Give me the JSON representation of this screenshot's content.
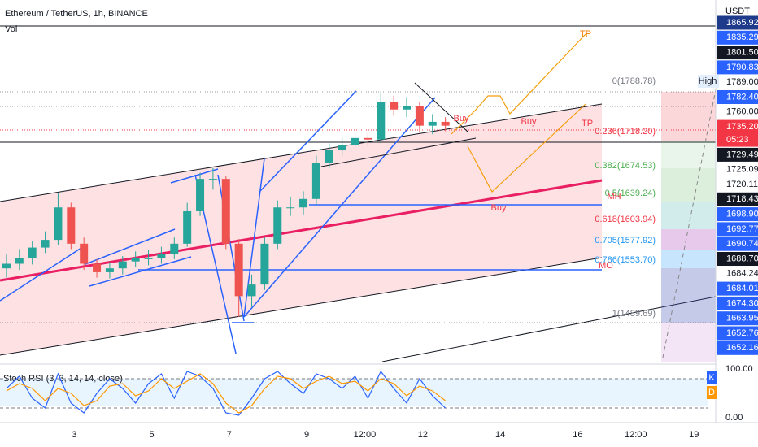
{
  "chart_data": {
    "type": "candlestick",
    "title": "Ethereum / TetherUS, 1h, BINANCE",
    "subtitle": "Vol",
    "y_axis_label": "USDT",
    "up_color": "#26a69a",
    "down_color": "#ef5350",
    "x": [
      4,
      12,
      20,
      28,
      36,
      44,
      52,
      60,
      68,
      76,
      84,
      92,
      100,
      108,
      116,
      124,
      132,
      140,
      148,
      156,
      164,
      172,
      180,
      188,
      196,
      204,
      212,
      220,
      228,
      236,
      244,
      252,
      260,
      268,
      276
    ],
    "open": [
      1560,
      1566,
      1573,
      1587,
      1597,
      1639,
      1592,
      1566,
      1555,
      1560,
      1569,
      1573,
      1573,
      1579,
      1592,
      1634,
      1676,
      1676,
      1592,
      1524,
      1539,
      1592,
      1639,
      1639,
      1650,
      1697,
      1713,
      1720,
      1729,
      1727,
      1776,
      1766,
      1771,
      1745,
      1750
    ],
    "high": [
      1578,
      1585,
      1596,
      1608,
      1657,
      1645,
      1600,
      1572,
      1568,
      1576,
      1582,
      1584,
      1588,
      1600,
      1645,
      1684,
      1690,
      1680,
      1598,
      1552,
      1600,
      1648,
      1652,
      1660,
      1706,
      1722,
      1730,
      1738,
      1736,
      1790,
      1784,
      1782,
      1776,
      1760,
      1756
    ],
    "low": [
      1548,
      1558,
      1565,
      1580,
      1590,
      1585,
      1558,
      1548,
      1547,
      1552,
      1562,
      1564,
      1566,
      1572,
      1588,
      1628,
      1662,
      1585,
      1497,
      1510,
      1532,
      1585,
      1628,
      1630,
      1642,
      1690,
      1706,
      1712,
      1718,
      1722,
      1758,
      1756,
      1736,
      1734,
      1738
    ],
    "close": [
      1566,
      1573,
      1587,
      1597,
      1639,
      1592,
      1566,
      1555,
      1560,
      1569,
      1573,
      1573,
      1579,
      1592,
      1634,
      1676,
      1676,
      1592,
      1524,
      1539,
      1592,
      1639,
      1639,
      1650,
      1697,
      1713,
      1720,
      1729,
      1727,
      1776,
      1766,
      1771,
      1745,
      1750,
      1745
    ],
    "xlim": [
      0,
      443.5
    ],
    "ylim": [
      1439,
      1908
    ],
    "xticks": [
      {
        "value": 46,
        "label": "3"
      },
      {
        "value": 94,
        "label": "5"
      },
      {
        "value": 142,
        "label": "7"
      },
      {
        "value": 190,
        "label": "9"
      },
      {
        "value": 226,
        "label": "12:00"
      },
      {
        "value": 262,
        "label": "12"
      },
      {
        "value": 310,
        "label": "14"
      },
      {
        "value": 358,
        "label": "16"
      },
      {
        "value": 394,
        "label": "12:00"
      },
      {
        "value": 430,
        "label": "19"
      }
    ],
    "price_tags": [
      {
        "label": "1865.92",
        "color": "#1e3a8a"
      },
      {
        "label": "1835.29",
        "color": "#2962ff"
      },
      {
        "label": "1801.50",
        "color": "#131722"
      },
      {
        "label": "1790.83",
        "color": "#2962ff"
      },
      {
        "label": "1789.00",
        "color": "#ffffff"
      },
      {
        "label": "1782.40",
        "color": "#2962ff"
      },
      {
        "label": "1760.00",
        "color": "#ffffff"
      },
      {
        "label": "1735.20",
        "color": "#f23645"
      },
      {
        "label": "05:23",
        "color": "#f23645"
      },
      {
        "label": "1729.49",
        "color": "#131722"
      },
      {
        "label": "1725.09",
        "color": "#ffffff"
      },
      {
        "label": "1720.11",
        "color": "#ffffff"
      },
      {
        "label": "1718.43",
        "color": "#131722"
      },
      {
        "label": "1698.90",
        "color": "#2962ff"
      },
      {
        "label": "1692.77",
        "color": "#2962ff"
      },
      {
        "label": "1690.74",
        "color": "#2962ff"
      },
      {
        "label": "1688.70",
        "color": "#131722"
      },
      {
        "label": "1684.24",
        "color": "#ffffff"
      },
      {
        "label": "1684.01",
        "color": "#2962ff"
      },
      {
        "label": "1674.30",
        "color": "#2962ff"
      },
      {
        "label": "1663.95",
        "color": "#2962ff"
      },
      {
        "label": "1652.76",
        "color": "#2962ff"
      },
      {
        "label": "1652.16",
        "color": "#2962ff"
      }
    ],
    "fib_labels": [
      {
        "label": "0(1788.78)",
        "color": "#787b86"
      },
      {
        "label": "0.236(1718.20)",
        "color": "#f23645"
      },
      {
        "label": "0.382(1674.53)",
        "color": "#4caf50"
      },
      {
        "label": "0.5(1639.24)",
        "color": "#4caf50"
      },
      {
        "label": "0.618(1603.94)",
        "color": "#f23645"
      },
      {
        "label": "0.705(1577.92)",
        "color": "#2196f3"
      },
      {
        "label": "0.786(1553.70)",
        "color": "#2196f3"
      },
      {
        "label": "1(1489.69)",
        "color": "#787b86"
      }
    ],
    "annotations": [
      {
        "label": "TP",
        "color": "#f57c00"
      },
      {
        "label": "Buy",
        "color": "#f23645"
      },
      {
        "label": "Buy",
        "color": "#f23645"
      },
      {
        "label": "TP",
        "color": "#f23645"
      },
      {
        "label": "Buy",
        "color": "#f23645"
      },
      {
        "label": "MH",
        "color": "#f23645"
      },
      {
        "label": "MO",
        "color": "#f23645"
      },
      {
        "label": "High",
        "color": "#131722"
      }
    ],
    "oscillator": {
      "title": "Stoch RSI (3, 3, 14, 14, close)",
      "ylim": [
        0,
        100
      ],
      "yticks": [
        {
          "value": 100,
          "label": "100.00"
        },
        {
          "value": 0,
          "label": "0.00"
        }
      ],
      "bands": [
        20,
        80
      ],
      "series": [
        {
          "name": "K",
          "color": "#2962ff",
          "values": [
            60,
            85,
            40,
            20,
            90,
            30,
            10,
            50,
            80,
            60,
            30,
            70,
            90,
            40,
            95,
            85,
            60,
            10,
            5,
            40,
            80,
            95,
            70,
            50,
            90,
            80,
            60,
            85,
            40,
            95,
            60,
            30,
            80,
            45,
            20
          ]
        },
        {
          "name": "D",
          "color": "#ff9800",
          "values": [
            55,
            70,
            60,
            35,
            60,
            50,
            25,
            35,
            65,
            70,
            45,
            55,
            80,
            60,
            75,
            90,
            70,
            30,
            10,
            25,
            60,
            85,
            80,
            60,
            75,
            85,
            70,
            75,
            55,
            80,
            70,
            45,
            65,
            55,
            35
          ]
        }
      ]
    }
  }
}
